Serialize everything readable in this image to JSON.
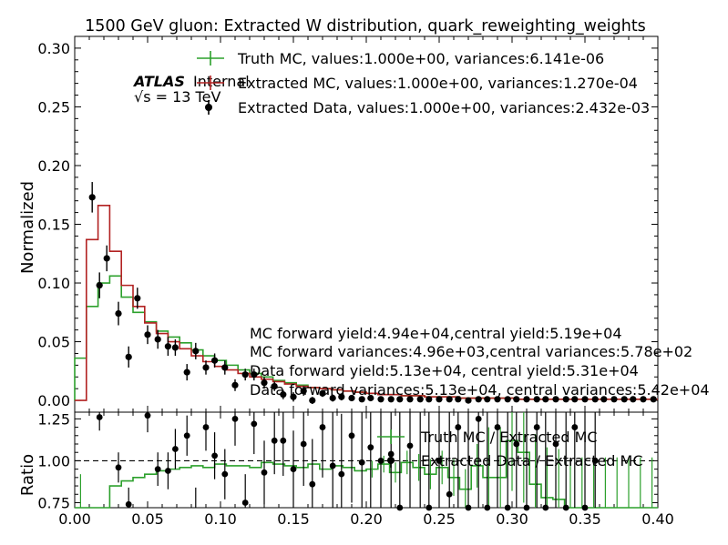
{
  "title": "1500 GeV gluon: Extracted W distribution, quark_reweighting_weights",
  "atlas": {
    "label": "ATLAS",
    "status": "Internal",
    "energy": "√s = 13 TeV"
  },
  "legend_top": [
    "Truth MC, values:1.000e+00, variances:6.141e-06",
    "Extracted MC, values:1.000e+00, variances:1.270e-04",
    "Extracted Data, values:1.000e+00, variances:2.432e-03"
  ],
  "notes": [
    "MC forward yield:4.94e+04,central yield:5.19e+04",
    "MC forward variances:4.96e+03,central variances:5.78e+02",
    "Data forward yield:5.13e+04, central yield:5.31e+04",
    "Data forward variances:5.13e+04, central variances:5.42e+04"
  ],
  "legend_ratio": [
    "Truth MC / Extracted MC",
    "Extracted Data / Extracted MC"
  ],
  "colors": {
    "truth": "#2ca02c",
    "extracted": "#b22222",
    "data": "#000000"
  },
  "chart_data": [
    {
      "type": "line",
      "panel": "main",
      "ylabel": "Normalized",
      "xlim": [
        0.0,
        0.4
      ],
      "ylim": [
        -0.01,
        0.31
      ],
      "yticks": [
        "0.00",
        "0.05",
        "0.10",
        "0.15",
        "0.20",
        "0.25",
        "0.30"
      ],
      "bin_edges": [
        0.0,
        0.008,
        0.016,
        0.024,
        0.032,
        0.04,
        0.048,
        0.056,
        0.064,
        0.072,
        0.08,
        0.088,
        0.096,
        0.104,
        0.112,
        0.12,
        0.128,
        0.136,
        0.144,
        0.152,
        0.16,
        0.168,
        0.176,
        0.184,
        0.192,
        0.2,
        0.208,
        0.216,
        0.224,
        0.232,
        0.24,
        0.248,
        0.256,
        0.264,
        0.272,
        0.28,
        0.288,
        0.296,
        0.304,
        0.312,
        0.32,
        0.328,
        0.336,
        0.344,
        0.352,
        0.36,
        0.368,
        0.376,
        0.384,
        0.392,
        0.4
      ],
      "series": [
        {
          "name": "Truth MC",
          "style": "step",
          "values": [
            0.036,
            0.08,
            0.1,
            0.106,
            0.088,
            0.075,
            0.067,
            0.059,
            0.054,
            0.049,
            0.043,
            0.038,
            0.034,
            0.03,
            0.026,
            0.023,
            0.02,
            0.017,
            0.015,
            0.013,
            0.011,
            0.01,
            0.009,
            0.008,
            0.007,
            0.006,
            0.005,
            0.005,
            0.004,
            0.004,
            0.003,
            0.003,
            0.003,
            0.002,
            0.002,
            0.002,
            0.002,
            0.002,
            0.001,
            0.001,
            0.001,
            0.001,
            0.001,
            0.001,
            0.001,
            0.001,
            0.001,
            0.001,
            0.001,
            0.001
          ]
        },
        {
          "name": "Extracted MC",
          "style": "step",
          "values": [
            0.0,
            0.137,
            0.166,
            0.127,
            0.098,
            0.08,
            0.066,
            0.057,
            0.05,
            0.044,
            0.038,
            0.033,
            0.029,
            0.026,
            0.023,
            0.02,
            0.018,
            0.016,
            0.014,
            0.012,
            0.011,
            0.01,
            0.009,
            0.008,
            0.007,
            0.006,
            0.005,
            0.005,
            0.004,
            0.004,
            0.003,
            0.003,
            0.003,
            0.002,
            0.002,
            0.002,
            0.002,
            0.002,
            0.001,
            0.001,
            0.001,
            0.001,
            0.001,
            0.001,
            0.001,
            0.001,
            0.001,
            0.001,
            0.001,
            0.001
          ]
        },
        {
          "name": "Extracted Data",
          "style": "points",
          "x": [
            0.012,
            0.017,
            0.022,
            0.03,
            0.037,
            0.043,
            0.05,
            0.057,
            0.064,
            0.069,
            0.077,
            0.083,
            0.09,
            0.096,
            0.103,
            0.11,
            0.117,
            0.123,
            0.13,
            0.137,
            0.143,
            0.15,
            0.157,
            0.163,
            0.17,
            0.177,
            0.183,
            0.19,
            0.197,
            0.203,
            0.21,
            0.217,
            0.223,
            0.23,
            0.237,
            0.243,
            0.25,
            0.257,
            0.263,
            0.27,
            0.277,
            0.283,
            0.29,
            0.297,
            0.303,
            0.31,
            0.317,
            0.323,
            0.33,
            0.337,
            0.343,
            0.35,
            0.357,
            0.363,
            0.37,
            0.377,
            0.383,
            0.39,
            0.397
          ],
          "y": [
            0.173,
            0.098,
            0.121,
            0.074,
            0.037,
            0.087,
            0.056,
            0.052,
            0.046,
            0.045,
            0.024,
            0.042,
            0.028,
            0.034,
            0.028,
            0.013,
            0.022,
            0.022,
            0.015,
            0.012,
            0.005,
            0.003,
            0.008,
            0.0,
            0.006,
            0.002,
            0.003,
            0.002,
            0.001,
            0.002,
            0.001,
            0.001,
            0.001,
            0.001,
            0.001,
            0.001,
            0.001,
            0.001,
            0.001,
            0.0,
            0.001,
            0.001,
            0.001,
            0.001,
            0.001,
            0.001,
            0.001,
            0.001,
            0.001,
            0.001,
            0.001,
            0.001,
            0.001,
            0.001,
            0.001,
            0.001,
            0.001,
            0.001,
            0.001
          ],
          "err": [
            0.013,
            0.011,
            0.011,
            0.01,
            0.009,
            0.009,
            0.008,
            0.008,
            0.008,
            0.007,
            0.007,
            0.007,
            0.006,
            0.006,
            0.006,
            0.005,
            0.005,
            0.005,
            0.005,
            0.004,
            0.004,
            0.004,
            0.004,
            0.003,
            0.003,
            0.003,
            0.003,
            0.002,
            0.002,
            0.002,
            0.002,
            0.002,
            0.002,
            0.001,
            0.001,
            0.001,
            0.001,
            0.001,
            0.001,
            0.001,
            0.001,
            0.001,
            0.001,
            0.001,
            0.001,
            0.001,
            0.001,
            0.001,
            0.001,
            0.001,
            0.001,
            0.001,
            0.001,
            0.001,
            0.001,
            0.001,
            0.001,
            0.001,
            0.001
          ]
        }
      ]
    },
    {
      "type": "line",
      "panel": "ratio",
      "ylabel": "Ratio",
      "xlim": [
        0.0,
        0.4
      ],
      "ylim": [
        0.72,
        1.29
      ],
      "yticks": [
        "0.75",
        "1.00",
        "1.25"
      ],
      "xticks": [
        "0.00",
        "0.05",
        "0.10",
        "0.15",
        "0.20",
        "0.25",
        "0.30",
        "0.35",
        "0.40"
      ],
      "reference_line": 1.0,
      "series": [
        {
          "name": "Truth MC / Extracted MC",
          "style": "step",
          "values": [
            0.72,
            0.62,
            0.62,
            0.85,
            0.88,
            0.9,
            0.92,
            0.94,
            0.95,
            0.96,
            0.97,
            0.96,
            0.98,
            0.97,
            0.97,
            0.96,
            0.99,
            0.98,
            0.97,
            0.96,
            0.98,
            0.95,
            0.97,
            0.96,
            0.94,
            0.95,
            0.98,
            0.93,
            0.99,
            0.96,
            0.92,
            0.96,
            0.9,
            0.83,
            0.97,
            0.9,
            0.9,
            1.12,
            1.05,
            0.86,
            0.78,
            0.77,
            0.7,
            0.72,
            0.7,
            0.72,
            0.72,
            0.72,
            0.72,
            0.72
          ],
          "errs": [
            0.2,
            0.02,
            0.02,
            0.01,
            0.01,
            0.01,
            0.01,
            0.01,
            0.01,
            0.01,
            0.01,
            0.01,
            0.01,
            0.01,
            0.01,
            0.01,
            0.01,
            0.02,
            0.02,
            0.02,
            0.03,
            0.03,
            0.03,
            0.04,
            0.04,
            0.05,
            0.05,
            0.06,
            0.07,
            0.08,
            0.09,
            0.1,
            0.11,
            0.12,
            0.13,
            0.3,
            0.3,
            0.3,
            0.3,
            0.3,
            0.3,
            0.3,
            0.3,
            0.3,
            0.3,
            0.3,
            0.3,
            0.3,
            0.3,
            0.3
          ]
        },
        {
          "name": "Extracted Data / Extracted MC",
          "style": "points",
          "x": [
            0.017,
            0.03,
            0.037,
            0.05,
            0.057,
            0.064,
            0.069,
            0.077,
            0.083,
            0.09,
            0.096,
            0.103,
            0.11,
            0.117,
            0.123,
            0.13,
            0.137,
            0.143,
            0.15,
            0.157,
            0.163,
            0.17,
            0.177,
            0.183,
            0.19,
            0.197,
            0.203,
            0.21,
            0.217,
            0.223,
            0.23,
            0.237,
            0.243,
            0.25,
            0.257,
            0.263,
            0.27,
            0.277,
            0.283,
            0.29,
            0.297,
            0.303,
            0.31,
            0.317,
            0.323,
            0.33,
            0.337,
            0.343,
            0.35,
            0.357
          ],
          "y": [
            1.26,
            0.96,
            0.74,
            1.27,
            0.95,
            0.94,
            1.07,
            1.15,
            0.71,
            1.2,
            1.03,
            0.92,
            1.25,
            0.75,
            1.22,
            0.93,
            1.12,
            1.12,
            0.95,
            1.1,
            0.86,
            1.2,
            0.97,
            0.92,
            1.15,
            0.99,
            1.08,
            1.0,
            1.04,
            0.72,
            1.09,
            1.3,
            0.72,
            1.0,
            0.8,
            1.2,
            0.72,
            1.25,
            0.72,
            1.2,
            0.72,
            1.1,
            0.72,
            1.2,
            0.72,
            1.1,
            0.72,
            1.2,
            0.72,
            1.0
          ],
          "err": [
            0.08,
            0.09,
            0.1,
            0.1,
            0.1,
            0.11,
            0.12,
            0.12,
            0.13,
            0.14,
            0.14,
            0.15,
            0.16,
            0.17,
            0.18,
            0.19,
            0.2,
            0.21,
            0.23,
            0.25,
            0.27,
            0.3,
            0.33,
            0.36,
            0.4,
            0.45,
            0.5,
            0.55,
            0.6,
            0.65,
            0.7,
            0.75,
            0.8,
            0.85,
            0.9,
            0.95,
            1.0,
            1.0,
            1.0,
            1.0,
            1.0,
            1.0,
            1.0,
            1.0,
            1.0,
            1.0,
            1.0,
            1.0,
            1.0,
            1.0
          ]
        }
      ]
    }
  ]
}
